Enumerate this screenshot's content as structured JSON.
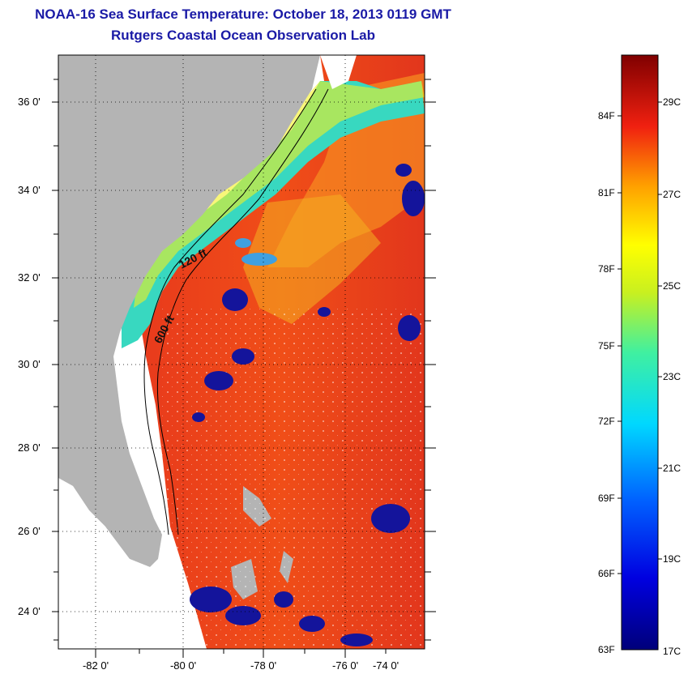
{
  "title": {
    "line1": "NOAA-16 Sea Surface Temperature:  October 18, 2013 0119 GMT",
    "line2": "Rutgers Coastal Ocean Observation Lab"
  },
  "axes": {
    "y_ticks": [
      "36 0'",
      "34 0'",
      "32 0'",
      "30 0'",
      "28 0'",
      "26 0'",
      "24 0'"
    ],
    "x_ticks": [
      "-82 0'",
      "-80 0'",
      "-78 0'",
      "-76 0'",
      "-74 0'"
    ]
  },
  "contours": {
    "shallow_label": "120 ft",
    "deep_label": "600 ft"
  },
  "colorbar": {
    "fahrenheit": [
      "84F",
      "81F",
      "78F",
      "75F",
      "72F",
      "69F",
      "66F",
      "63F"
    ],
    "celsius": [
      "29C",
      "27C",
      "25C",
      "23C",
      "21C",
      "19C",
      "17C"
    ]
  },
  "colors": {
    "title": "#1a1aa6",
    "land": "#b4b4b4",
    "ocean_warm": "#e8321e",
    "cloud": "#14149b"
  }
}
